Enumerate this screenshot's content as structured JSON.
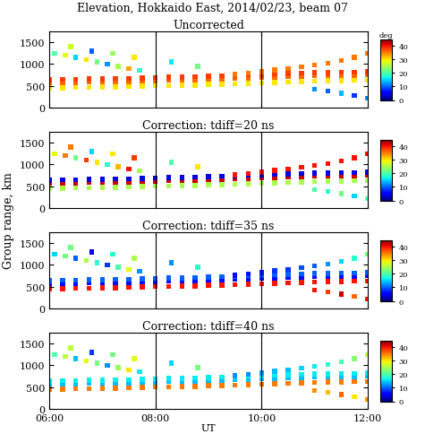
{
  "title": "Elevation, Hokkaido East, 2014/02/23, beam 07",
  "xlabel": "UT",
  "ylabel": "Group range, km",
  "x": [
    6.0,
    6.25,
    6.5,
    6.75,
    7.0,
    7.25,
    7.5,
    7.75,
    8.0,
    8.25,
    8.5,
    8.75,
    9.0,
    9.25,
    9.5,
    9.75,
    10.0,
    10.25,
    10.5,
    10.75,
    11.0,
    11.25,
    11.5,
    11.75,
    12.0,
    6.0,
    6.25,
    6.5,
    6.75,
    7.0,
    7.25,
    7.5,
    7.75,
    8.0,
    8.25,
    8.5,
    8.75,
    9.0,
    9.25,
    9.5,
    9.75,
    10.0,
    10.25,
    10.5,
    10.75,
    11.0,
    11.25,
    11.5,
    11.75,
    12.0,
    6.0,
    6.25,
    6.5,
    6.75,
    7.0,
    7.25,
    7.5,
    7.75,
    8.0,
    8.25,
    8.5,
    8.75,
    9.0,
    9.25,
    9.5,
    9.75,
    10.0,
    10.25,
    10.5,
    10.75,
    11.0,
    11.25,
    11.5,
    11.75,
    12.0,
    9.5,
    9.75,
    10.0,
    10.25,
    10.5,
    10.75,
    11.0,
    11.25,
    11.5,
    11.75,
    12.0,
    6.1,
    6.3,
    6.5,
    6.7,
    6.9,
    7.1,
    7.3,
    7.5,
    7.7,
    6.4,
    6.8,
    7.2,
    7.6,
    8.3,
    8.8,
    11.0,
    11.25,
    11.5,
    11.75,
    12.0
  ],
  "y": [
    450,
    455,
    460,
    465,
    470,
    475,
    480,
    490,
    500,
    505,
    510,
    520,
    530,
    540,
    550,
    560,
    570,
    580,
    590,
    600,
    610,
    615,
    620,
    625,
    630,
    570,
    575,
    580,
    585,
    590,
    595,
    600,
    610,
    620,
    625,
    630,
    640,
    650,
    660,
    670,
    680,
    690,
    700,
    710,
    720,
    730,
    735,
    740,
    745,
    750,
    640,
    645,
    650,
    655,
    660,
    665,
    670,
    680,
    690,
    695,
    700,
    710,
    720,
    730,
    740,
    750,
    760,
    770,
    780,
    790,
    800,
    805,
    810,
    815,
    820,
    760,
    790,
    820,
    860,
    900,
    940,
    980,
    1020,
    1080,
    1150,
    1250,
    1250,
    1200,
    1150,
    1100,
    1050,
    1000,
    950,
    900,
    850,
    1400,
    1300,
    1250,
    1150,
    1050,
    950,
    420,
    380,
    330,
    280,
    220
  ],
  "chart_data": [
    {
      "type": "scatter",
      "title": "Uncorrected",
      "xlim": [
        6,
        12
      ],
      "ylim": [
        0,
        1750
      ],
      "xticks": [
        {
          "value": 6,
          "label": "06:00"
        },
        {
          "value": 8,
          "label": "08:00"
        },
        {
          "value": 10,
          "label": "10:00"
        },
        {
          "value": 12,
          "label": "12:00"
        }
      ],
      "yticks": [
        0,
        500,
        1000,
        1500
      ],
      "vlines": [
        8,
        10
      ],
      "colorbar_range": [
        0,
        45
      ],
      "colorbar_ticks": [
        0,
        10,
        20,
        30,
        40
      ],
      "colorbar_label": "deg",
      "elevation": [
        30,
        30,
        30,
        30,
        30,
        30,
        30,
        30,
        30,
        30,
        30,
        30,
        30,
        30,
        30,
        30,
        30,
        30,
        30,
        30,
        30,
        30,
        30,
        30,
        30,
        36,
        36,
        36,
        36,
        36,
        36,
        36,
        36,
        36,
        36,
        36,
        36,
        36,
        36,
        36,
        36,
        36,
        36,
        36,
        36,
        36,
        36,
        36,
        36,
        36,
        38,
        38,
        38,
        38,
        38,
        38,
        38,
        38,
        38,
        38,
        38,
        38,
        38,
        38,
        38,
        38,
        38,
        38,
        38,
        38,
        38,
        38,
        38,
        38,
        38,
        35,
        35,
        35,
        35,
        35,
        35,
        35,
        35,
        35,
        35,
        35,
        20,
        28,
        15,
        30,
        22,
        12,
        25,
        33,
        18,
        27,
        10,
        24,
        30,
        16,
        22,
        12,
        10,
        14,
        8,
        12
      ]
    },
    {
      "type": "scatter",
      "title": "Correction: tdiff=20 ns",
      "xlim": [
        6,
        12
      ],
      "ylim": [
        0,
        1750
      ],
      "xticks": [
        {
          "value": 6,
          "label": "06:00"
        },
        {
          "value": 8,
          "label": "08:00"
        },
        {
          "value": 10,
          "label": "10:00"
        },
        {
          "value": 12,
          "label": "12:00"
        }
      ],
      "yticks": [
        0,
        500,
        1000,
        1500
      ],
      "vlines": [
        8,
        10
      ],
      "colorbar_range": [
        0,
        45
      ],
      "colorbar_ticks": [
        0,
        10,
        20,
        30,
        40
      ],
      "elevation": [
        25,
        25,
        25,
        25,
        25,
        25,
        25,
        25,
        25,
        25,
        25,
        25,
        25,
        25,
        25,
        25,
        25,
        25,
        25,
        25,
        25,
        25,
        25,
        25,
        25,
        42,
        42,
        42,
        42,
        42,
        42,
        42,
        42,
        42,
        42,
        42,
        42,
        42,
        42,
        42,
        42,
        42,
        42,
        42,
        42,
        42,
        42,
        42,
        42,
        42,
        4,
        4,
        4,
        4,
        4,
        4,
        4,
        4,
        4,
        4,
        4,
        4,
        4,
        4,
        4,
        4,
        4,
        4,
        4,
        4,
        4,
        4,
        4,
        4,
        4,
        40,
        40,
        40,
        40,
        40,
        40,
        40,
        40,
        40,
        40,
        40,
        28,
        35,
        22,
        38,
        30,
        18,
        32,
        40,
        25,
        35,
        15,
        30,
        38,
        20,
        30,
        20,
        18,
        22,
        15,
        20
      ]
    },
    {
      "type": "scatter",
      "title": "Correction: tdiff=35 ns",
      "xlim": [
        6,
        12
      ],
      "ylim": [
        0,
        1750
      ],
      "xticks": [
        {
          "value": 6,
          "label": "06:00"
        },
        {
          "value": 8,
          "label": "08:00"
        },
        {
          "value": 10,
          "label": "10:00"
        },
        {
          "value": 12,
          "label": "12:00"
        }
      ],
      "yticks": [
        0,
        500,
        1000,
        1500
      ],
      "vlines": [
        8,
        10
      ],
      "colorbar_range": [
        0,
        45
      ],
      "colorbar_ticks": [
        0,
        10,
        20,
        30,
        40
      ],
      "elevation": [
        40,
        40,
        40,
        40,
        40,
        40,
        40,
        40,
        40,
        40,
        40,
        40,
        40,
        40,
        40,
        40,
        40,
        40,
        40,
        40,
        40,
        40,
        40,
        40,
        40,
        6,
        6,
        6,
        6,
        6,
        6,
        6,
        6,
        6,
        6,
        6,
        6,
        6,
        6,
        6,
        6,
        6,
        6,
        6,
        6,
        6,
        6,
        6,
        6,
        6,
        10,
        10,
        10,
        10,
        10,
        10,
        10,
        10,
        10,
        10,
        10,
        10,
        10,
        10,
        10,
        10,
        10,
        10,
        10,
        10,
        10,
        10,
        10,
        10,
        10,
        6,
        6,
        7,
        8,
        8,
        9,
        10,
        12,
        15,
        18,
        22,
        15,
        22,
        10,
        25,
        18,
        8,
        20,
        28,
        12,
        22,
        5,
        18,
        25,
        12,
        18,
        40,
        38,
        42,
        36,
        40
      ]
    },
    {
      "type": "scatter",
      "title": "Correction: tdiff=40 ns",
      "xlim": [
        6,
        12
      ],
      "ylim": [
        0,
        1750
      ],
      "xticks": [
        {
          "value": 6,
          "label": "06:00"
        },
        {
          "value": 8,
          "label": "08:00"
        },
        {
          "value": 10,
          "label": "10:00"
        },
        {
          "value": 12,
          "label": "12:00"
        }
      ],
      "yticks": [
        0,
        500,
        1000,
        1500
      ],
      "vlines": [
        8,
        10
      ],
      "colorbar_range": [
        0,
        45
      ],
      "colorbar_ticks": [
        0,
        10,
        20,
        30,
        40
      ],
      "elevation": [
        35,
        35,
        35,
        35,
        35,
        35,
        35,
        35,
        35,
        35,
        35,
        35,
        35,
        35,
        35,
        35,
        35,
        35,
        35,
        35,
        35,
        35,
        35,
        35,
        35,
        14,
        14,
        14,
        14,
        14,
        14,
        14,
        14,
        14,
        14,
        14,
        14,
        14,
        14,
        14,
        14,
        14,
        14,
        14,
        14,
        14,
        14,
        14,
        14,
        14,
        16,
        16,
        16,
        16,
        16,
        16,
        16,
        16,
        16,
        16,
        16,
        16,
        16,
        16,
        16,
        16,
        16,
        16,
        16,
        16,
        16,
        16,
        16,
        16,
        16,
        12,
        12,
        13,
        14,
        14,
        15,
        16,
        18,
        20,
        23,
        26,
        20,
        26,
        14,
        28,
        22,
        12,
        24,
        30,
        16,
        26,
        8,
        22,
        28,
        15,
        22,
        34,
        32,
        36,
        30,
        34
      ]
    }
  ]
}
